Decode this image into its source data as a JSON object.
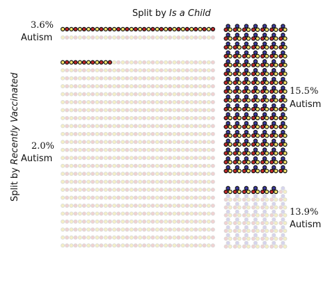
{
  "chart_data": {
    "type": "icon_array",
    "title_prefix": "Split by ",
    "title_var": "Is a Child",
    "ylabel_prefix": "Split by ",
    "ylabel_var": "Recently Vaccinated",
    "outcome": "Autism",
    "panels": [
      {
        "id": "top-left",
        "percent": "3.6%",
        "value": 3.6,
        "cols": 18,
        "rows": 2,
        "highlight_symbol": "red-and-yellow",
        "highlighted_cells": 18,
        "half_cells": 0
      },
      {
        "id": "top-right",
        "percent": "15.5%",
        "value": 15.5,
        "cols": 7,
        "rows": 17,
        "highlight_symbol": "blue-red-yellow",
        "highlighted_cells": 119,
        "half_cells": 0
      },
      {
        "id": "bottom-left",
        "percent": "2.0%",
        "value": 2.0,
        "cols": 18,
        "rows": 24,
        "highlight_symbol": "red-and-yellow",
        "highlighted_cells": 6,
        "half_cells": 0
      },
      {
        "id": "bottom-right",
        "percent": "13.9%",
        "value": 13.9,
        "cols": 7,
        "rows": 8,
        "highlight_symbol": "blue-red-yellow",
        "highlighted_cells": 6,
        "half_cells": 0
      }
    ],
    "colors": {
      "red": "#c0282a",
      "yellow": "#f3e36a",
      "blue": "#3c3aa0",
      "faded_red": "#f1d2d2",
      "faded_yellow": "#f4efc6",
      "faded_blue": "#d6d4ef",
      "outline": "#111111",
      "faded_outline": "#d8d8d8"
    }
  }
}
